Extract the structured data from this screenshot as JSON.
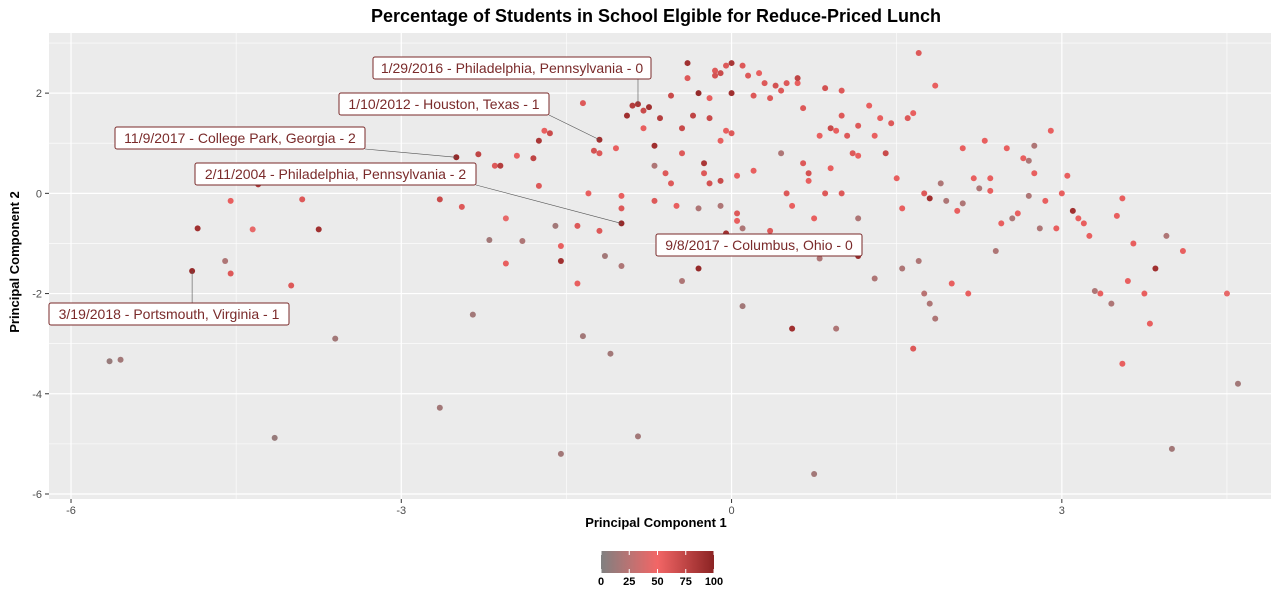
{
  "chart_data": {
    "type": "scatter",
    "title": "Percentage of Students in School Elgible for Reduce-Priced Lunch",
    "xlabel": "Principal Component 1",
    "ylabel": "Principal Component 2",
    "xlim": [
      -6.2,
      4.9
    ],
    "ylim": [
      -6.1,
      3.2
    ],
    "x_ticks": [
      -6,
      -3,
      0,
      3
    ],
    "y_ticks": [
      -6,
      -4,
      -2,
      0,
      2
    ],
    "grid": true,
    "background": "#ebebeb",
    "colorbar": {
      "ticks": [
        0,
        25,
        50,
        75,
        100
      ],
      "colors": [
        "#808080",
        "#f26666",
        "#8b2323"
      ],
      "placement": "bottom"
    },
    "annotations": [
      {
        "label": "1/29/2016 - Philadelphia, Pennsylvania - 0",
        "point": [
          -0.85,
          1.78
        ]
      },
      {
        "label": "1/10/2012 - Houston, Texas - 1",
        "point": [
          -1.2,
          1.07
        ]
      },
      {
        "label": "11/9/2017 - College Park, Georgia - 2",
        "point": [
          -2.5,
          0.72
        ]
      },
      {
        "label": "2/11/2004 - Philadelphia, Pennsylvania - 2",
        "point": [
          -1.0,
          -0.6
        ]
      },
      {
        "label": "9/8/2017 - Columbus, Ohio - 0",
        "point": [
          1.15,
          -1.25
        ]
      },
      {
        "label": "3/19/2018 - Portsmouth, Virginia - 1",
        "point": [
          -4.9,
          -1.55
        ]
      }
    ],
    "points": [
      [
        -5.65,
        -3.35,
        10
      ],
      [
        -5.55,
        -3.32,
        15
      ],
      [
        -4.9,
        -1.55,
        95
      ],
      [
        -4.85,
        -0.7,
        90
      ],
      [
        -4.6,
        -1.35,
        20
      ],
      [
        -4.55,
        -1.6,
        60
      ],
      [
        -4.55,
        -0.15,
        55
      ],
      [
        -4.35,
        -0.72,
        45
      ],
      [
        -4.3,
        0.18,
        85
      ],
      [
        -4.15,
        -4.88,
        10
      ],
      [
        -4.0,
        -1.84,
        60
      ],
      [
        -3.9,
        -0.12,
        60
      ],
      [
        -3.75,
        -0.72,
        90
      ],
      [
        -3.6,
        -2.9,
        15
      ],
      [
        -2.65,
        -0.12,
        70
      ],
      [
        -2.65,
        -4.28,
        15
      ],
      [
        -2.5,
        0.72,
        95
      ],
      [
        -2.45,
        -0.27,
        60
      ],
      [
        -2.35,
        -2.42,
        15
      ],
      [
        -2.3,
        0.78,
        75
      ],
      [
        -2.2,
        -0.93,
        15
      ],
      [
        -2.15,
        0.55,
        60
      ],
      [
        -2.1,
        0.55,
        80
      ],
      [
        -2.05,
        -0.5,
        45
      ],
      [
        -2.05,
        -1.4,
        55
      ],
      [
        -1.95,
        0.75,
        55
      ],
      [
        -1.9,
        -0.95,
        20
      ],
      [
        -1.8,
        0.7,
        75
      ],
      [
        -1.75,
        1.05,
        85
      ],
      [
        -1.75,
        0.15,
        60
      ],
      [
        -1.7,
        1.25,
        55
      ],
      [
        -1.65,
        1.2,
        70
      ],
      [
        -1.6,
        -0.65,
        15
      ],
      [
        -1.55,
        -1.05,
        55
      ],
      [
        -1.55,
        -1.35,
        90
      ],
      [
        -1.55,
        -5.2,
        15
      ],
      [
        -1.4,
        -0.65,
        60
      ],
      [
        -1.4,
        -1.8,
        55
      ],
      [
        -1.35,
        -2.85,
        15
      ],
      [
        -1.35,
        1.8,
        60
      ],
      [
        -1.3,
        0.0,
        55
      ],
      [
        -1.25,
        0.85,
        65
      ],
      [
        -1.2,
        0.8,
        60
      ],
      [
        -1.2,
        -0.75,
        60
      ],
      [
        -1.2,
        1.07,
        90
      ],
      [
        -1.15,
        -1.25,
        15
      ],
      [
        -1.1,
        -3.2,
        15
      ],
      [
        -1.05,
        0.9,
        55
      ],
      [
        -1.0,
        -0.6,
        95
      ],
      [
        -1.0,
        -1.45,
        20
      ],
      [
        -1.0,
        -0.05,
        55
      ],
      [
        -1.0,
        -0.3,
        60
      ],
      [
        -0.95,
        1.55,
        90
      ],
      [
        -0.9,
        1.75,
        80
      ],
      [
        -0.85,
        1.78,
        85
      ],
      [
        -0.85,
        -4.85,
        15
      ],
      [
        -0.8,
        1.3,
        55
      ],
      [
        -0.8,
        1.65,
        70
      ],
      [
        -0.75,
        1.72,
        90
      ],
      [
        -0.7,
        0.95,
        90
      ],
      [
        -0.7,
        0.55,
        20
      ],
      [
        -0.7,
        -0.15,
        60
      ],
      [
        -0.65,
        1.5,
        80
      ],
      [
        -0.6,
        0.4,
        60
      ],
      [
        -0.55,
        1.95,
        70
      ],
      [
        -0.55,
        0.2,
        60
      ],
      [
        -0.5,
        -0.25,
        55
      ],
      [
        -0.45,
        1.3,
        70
      ],
      [
        -0.45,
        0.8,
        60
      ],
      [
        -0.45,
        -1.75,
        20
      ],
      [
        -0.4,
        2.6,
        90
      ],
      [
        -0.4,
        2.3,
        60
      ],
      [
        -0.35,
        1.55,
        75
      ],
      [
        -0.3,
        2.0,
        95
      ],
      [
        -0.3,
        -0.3,
        20
      ],
      [
        -0.3,
        -1.5,
        95
      ],
      [
        -0.25,
        0.6,
        85
      ],
      [
        -0.25,
        0.4,
        60
      ],
      [
        -0.2,
        1.9,
        55
      ],
      [
        -0.2,
        1.5,
        70
      ],
      [
        -0.2,
        0.2,
        65
      ],
      [
        -0.15,
        2.45,
        60
      ],
      [
        -0.15,
        2.35,
        65
      ],
      [
        -0.1,
        2.4,
        70
      ],
      [
        -0.1,
        1.05,
        55
      ],
      [
        -0.1,
        0.25,
        70
      ],
      [
        -0.1,
        -0.25,
        20
      ],
      [
        -0.05,
        2.55,
        60
      ],
      [
        -0.05,
        1.25,
        55
      ],
      [
        -0.05,
        -0.8,
        90
      ],
      [
        0.0,
        2.6,
        85
      ],
      [
        0.0,
        2.0,
        90
      ],
      [
        0.0,
        1.2,
        60
      ],
      [
        0.05,
        0.35,
        55
      ],
      [
        0.05,
        -0.4,
        60
      ],
      [
        0.05,
        -0.55,
        55
      ],
      [
        0.1,
        2.55,
        60
      ],
      [
        0.1,
        -0.7,
        20
      ],
      [
        0.1,
        -2.25,
        15
      ],
      [
        0.15,
        2.35,
        60
      ],
      [
        0.2,
        1.95,
        60
      ],
      [
        0.2,
        0.45,
        55
      ],
      [
        0.25,
        2.4,
        55
      ],
      [
        0.3,
        2.2,
        60
      ],
      [
        0.35,
        1.9,
        60
      ],
      [
        0.35,
        -0.75,
        60
      ],
      [
        0.4,
        2.15,
        65
      ],
      [
        0.45,
        2.05,
        60
      ],
      [
        0.45,
        0.8,
        20
      ],
      [
        0.5,
        2.2,
        60
      ],
      [
        0.5,
        0.0,
        60
      ],
      [
        0.55,
        -0.25,
        55
      ],
      [
        0.55,
        -2.7,
        90
      ],
      [
        0.6,
        2.2,
        55
      ],
      [
        0.6,
        2.3,
        75
      ],
      [
        0.65,
        1.7,
        60
      ],
      [
        0.65,
        0.6,
        60
      ],
      [
        0.7,
        0.4,
        65
      ],
      [
        0.7,
        0.25,
        55
      ],
      [
        0.75,
        -0.5,
        55
      ],
      [
        0.75,
        -5.6,
        15
      ],
      [
        0.8,
        1.15,
        55
      ],
      [
        0.8,
        -1.3,
        20
      ],
      [
        0.85,
        2.1,
        65
      ],
      [
        0.85,
        0.0,
        60
      ],
      [
        0.9,
        1.3,
        70
      ],
      [
        0.9,
        0.5,
        55
      ],
      [
        0.95,
        1.25,
        55
      ],
      [
        0.95,
        -2.7,
        20
      ],
      [
        1.0,
        2.05,
        60
      ],
      [
        1.0,
        1.55,
        60
      ],
      [
        1.0,
        0.0,
        60
      ],
      [
        1.05,
        1.15,
        60
      ],
      [
        1.1,
        0.8,
        60
      ],
      [
        1.15,
        1.35,
        60
      ],
      [
        1.15,
        0.75,
        55
      ],
      [
        1.15,
        -0.5,
        20
      ],
      [
        1.15,
        -1.25,
        95
      ],
      [
        1.25,
        1.75,
        55
      ],
      [
        1.3,
        1.15,
        55
      ],
      [
        1.3,
        -1.7,
        20
      ],
      [
        1.35,
        1.5,
        55
      ],
      [
        1.4,
        0.8,
        70
      ],
      [
        1.45,
        1.4,
        60
      ],
      [
        1.5,
        0.3,
        55
      ],
      [
        1.55,
        -1.5,
        20
      ],
      [
        1.55,
        -0.3,
        55
      ],
      [
        1.6,
        1.5,
        60
      ],
      [
        1.65,
        1.6,
        55
      ],
      [
        1.65,
        -3.1,
        60
      ],
      [
        1.7,
        2.8,
        60
      ],
      [
        1.7,
        -1.35,
        20
      ],
      [
        1.75,
        -2.0,
        25
      ],
      [
        1.75,
        0.0,
        60
      ],
      [
        1.8,
        -0.1,
        90
      ],
      [
        1.8,
        -2.2,
        20
      ],
      [
        1.85,
        2.15,
        55
      ],
      [
        1.85,
        -2.5,
        20
      ],
      [
        1.9,
        0.2,
        20
      ],
      [
        1.95,
        -0.15,
        20
      ],
      [
        2.0,
        -1.8,
        55
      ],
      [
        2.05,
        -0.35,
        55
      ],
      [
        2.1,
        0.9,
        55
      ],
      [
        2.1,
        -0.2,
        20
      ],
      [
        2.15,
        -2.0,
        55
      ],
      [
        2.2,
        0.3,
        55
      ],
      [
        2.25,
        0.1,
        20
      ],
      [
        2.3,
        1.05,
        55
      ],
      [
        2.35,
        0.3,
        55
      ],
      [
        2.35,
        0.05,
        55
      ],
      [
        2.4,
        -1.15,
        20
      ],
      [
        2.45,
        -0.6,
        55
      ],
      [
        2.5,
        0.9,
        55
      ],
      [
        2.55,
        -0.5,
        20
      ],
      [
        2.6,
        -0.4,
        55
      ],
      [
        2.65,
        0.7,
        55
      ],
      [
        2.7,
        0.65,
        20
      ],
      [
        2.7,
        -0.05,
        20
      ],
      [
        2.75,
        0.95,
        20
      ],
      [
        2.75,
        0.4,
        55
      ],
      [
        2.8,
        -0.7,
        20
      ],
      [
        2.85,
        -0.15,
        55
      ],
      [
        2.9,
        1.25,
        55
      ],
      [
        2.95,
        -0.7,
        55
      ],
      [
        3.0,
        0.0,
        55
      ],
      [
        3.05,
        0.35,
        55
      ],
      [
        3.1,
        -0.35,
        90
      ],
      [
        3.15,
        -0.5,
        55
      ],
      [
        3.2,
        -0.6,
        55
      ],
      [
        3.25,
        -0.85,
        55
      ],
      [
        3.3,
        -1.95,
        20
      ],
      [
        3.35,
        -2.0,
        55
      ],
      [
        3.45,
        -2.2,
        20
      ],
      [
        3.5,
        -0.45,
        55
      ],
      [
        3.55,
        -3.4,
        55
      ],
      [
        3.55,
        -0.1,
        55
      ],
      [
        3.6,
        -1.75,
        55
      ],
      [
        3.65,
        -1.0,
        55
      ],
      [
        3.75,
        -2.0,
        55
      ],
      [
        3.8,
        -2.6,
        55
      ],
      [
        3.85,
        -1.5,
        90
      ],
      [
        3.95,
        -0.85,
        20
      ],
      [
        4.0,
        -5.1,
        15
      ],
      [
        4.1,
        -1.15,
        55
      ],
      [
        4.5,
        -2.0,
        45
      ],
      [
        4.6,
        -3.8,
        15
      ]
    ]
  }
}
